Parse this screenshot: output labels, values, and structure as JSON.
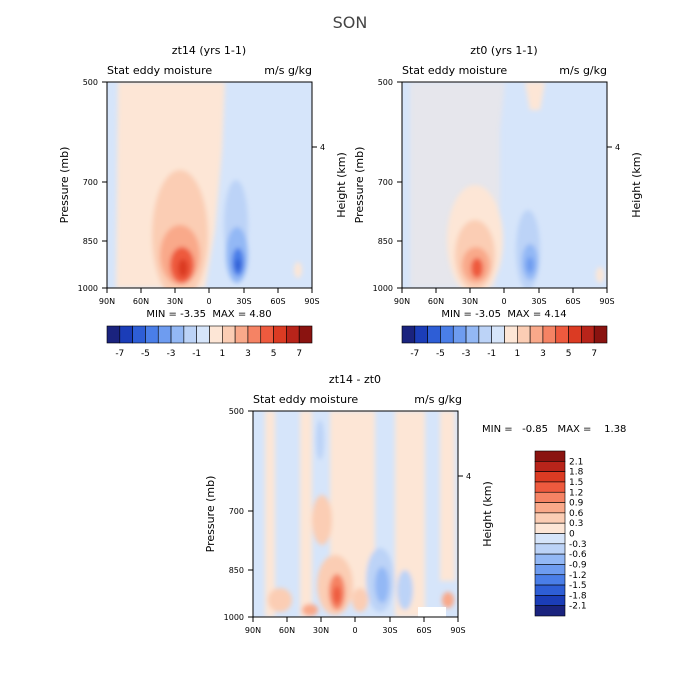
{
  "page_title": "SON",
  "chart_data": [
    {
      "type": "heatmap",
      "title": "zt14 (yrs 1-1)",
      "left_label": "Stat eddy moisture",
      "right_label": "m/s g/kg",
      "ylabel": "Pressure (mb)",
      "ylabel_right": "Height (km)",
      "x_ticks": [
        "90N",
        "60N",
        "30N",
        "0",
        "30S",
        "60S",
        "90S"
      ],
      "x_values": [
        90,
        60,
        30,
        0,
        -30,
        -60,
        -90
      ],
      "y_ticks": [
        "500",
        "700",
        "850",
        "1000"
      ],
      "y_values": [
        500,
        700,
        850,
        1000
      ],
      "y_ticks_right": [
        "4"
      ],
      "xlim": [
        90,
        -90
      ],
      "ylim": [
        1000,
        500
      ],
      "stats_text": "MIN = -3.35  MAX = 4.80",
      "min": -3.35,
      "max": 4.8,
      "colorbar_labels": [
        "-7",
        "-5",
        "-3",
        "-1",
        "1",
        "3",
        "5",
        "7"
      ],
      "features": [
        {
          "lat": 25,
          "p": 930,
          "value": 4.8
        },
        {
          "lat": 30,
          "p": 700,
          "value": 1.0
        },
        {
          "lat": -25,
          "p": 920,
          "value": -3.35
        },
        {
          "lat": -20,
          "p": 700,
          "value": -1.0
        }
      ]
    },
    {
      "type": "heatmap",
      "title": "zt0 (yrs 1-1)",
      "left_label": "Stat eddy moisture",
      "right_label": "m/s g/kg",
      "ylabel": "Pressure (mb)",
      "ylabel_right": "Height (km)",
      "x_ticks": [
        "90N",
        "60N",
        "30N",
        "0",
        "30S",
        "60S",
        "90S"
      ],
      "x_values": [
        90,
        60,
        30,
        0,
        -30,
        -60,
        -90
      ],
      "y_ticks": [
        "500",
        "700",
        "850",
        "1000"
      ],
      "y_values": [
        500,
        700,
        850,
        1000
      ],
      "y_ticks_right": [
        "4"
      ],
      "xlim": [
        90,
        -90
      ],
      "ylim": [
        1000,
        500
      ],
      "stats_text": "MIN = -3.05  MAX = 4.14",
      "min": -3.05,
      "max": 4.14,
      "colorbar_labels": [
        "-7",
        "-5",
        "-3",
        "-1",
        "1",
        "3",
        "5",
        "7"
      ],
      "features": [
        {
          "lat": 25,
          "p": 930,
          "value": 4.14
        },
        {
          "lat": -20,
          "p": 900,
          "value": -3.05
        }
      ]
    },
    {
      "type": "heatmap",
      "title": "zt14 - zt0",
      "left_label": "Stat eddy moisture",
      "right_label": "m/s g/kg",
      "ylabel": "Pressure (mb)",
      "ylabel_right": "Height (km)",
      "x_ticks": [
        "90N",
        "60N",
        "30N",
        "0",
        "30S",
        "60S",
        "90S"
      ],
      "x_values": [
        90,
        60,
        30,
        0,
        -30,
        -60,
        -90
      ],
      "y_ticks": [
        "500",
        "700",
        "850",
        "1000"
      ],
      "y_values": [
        500,
        700,
        850,
        1000
      ],
      "y_ticks_right": [
        "4"
      ],
      "xlim": [
        90,
        -90
      ],
      "ylim": [
        1000,
        500
      ],
      "stats_text": "MIN =   -0.85   MAX =    1.38",
      "min": -0.85,
      "max": 1.38,
      "colorbar_labels": [
        "2.1",
        "1.8",
        "1.5",
        "1.2",
        "0.9",
        "0.6",
        "0.3",
        "0",
        "-0.3",
        "-0.6",
        "-0.9",
        "-1.2",
        "-1.5",
        "-1.8",
        "-2.1"
      ],
      "features": [
        {
          "lat": 20,
          "p": 950,
          "value": 1.38
        },
        {
          "lat": -20,
          "p": 880,
          "value": -0.85
        }
      ]
    }
  ],
  "colors": {
    "panel_top": [
      "#1a237e",
      "#1b3db8",
      "#2e5ed6",
      "#4a7ee8",
      "#6e9cf0",
      "#93b8f5",
      "#bcd3f7",
      "#d6e5fa",
      "#fde6d6",
      "#fbcdb4",
      "#f9a98a",
      "#f58364",
      "#ee5a3e",
      "#db3b23",
      "#b8241a",
      "#8a1310"
    ],
    "panel_diff": [
      "#8a1310",
      "#b8241a",
      "#db3b23",
      "#ee5a3e",
      "#f58364",
      "#f9a98a",
      "#fbcdb4",
      "#fde6d6",
      "#d6e5fa",
      "#bcd3f7",
      "#93b8f5",
      "#6e9cf0",
      "#4a7ee8",
      "#2e5ed6",
      "#1b3db8",
      "#1a237e"
    ]
  }
}
